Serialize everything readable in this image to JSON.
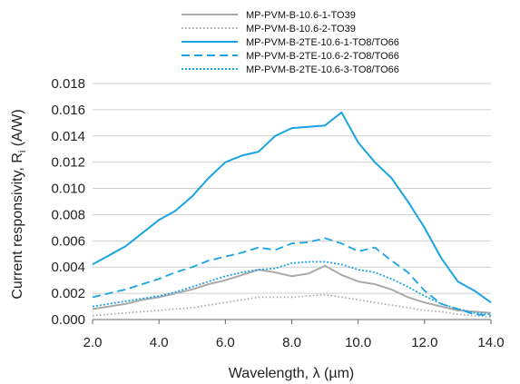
{
  "chart_data": {
    "type": "line",
    "xlabel": "Wavelength, λ (µm)",
    "ylabel_main": "Current responsivity, R",
    "ylabel_sub": "i",
    "ylabel_unit": " (A/W)",
    "xlim": [
      2.0,
      14.0
    ],
    "ylim": [
      0.0,
      0.018
    ],
    "x_ticks": [
      "2.0",
      "4.0",
      "6.0",
      "8.0",
      "10.0",
      "12.0",
      "14.0"
    ],
    "y_ticks": [
      "0.000",
      "0.002",
      "0.004",
      "0.006",
      "0.008",
      "0.010",
      "0.012",
      "0.014",
      "0.016",
      "0.018"
    ],
    "grid": "horizontal",
    "legend_position": "top",
    "series": [
      {
        "name": "MP-PVM-B-10.6-1-TO39",
        "color": "#aaaaaa",
        "style": "solid",
        "x": [
          2.0,
          2.5,
          3.0,
          3.5,
          4.0,
          4.5,
          5.0,
          5.5,
          6.0,
          6.5,
          7.0,
          7.5,
          8.0,
          8.5,
          9.0,
          9.5,
          10.0,
          10.5,
          11.0,
          11.5,
          12.0,
          12.5,
          13.0,
          13.5,
          14.0
        ],
        "y": [
          0.0008,
          0.001,
          0.0012,
          0.0015,
          0.0017,
          0.002,
          0.0023,
          0.0027,
          0.003,
          0.0034,
          0.0038,
          0.0036,
          0.0033,
          0.0035,
          0.0041,
          0.0034,
          0.0029,
          0.0027,
          0.0023,
          0.0017,
          0.0013,
          0.001,
          0.0007,
          0.0006,
          0.0005
        ]
      },
      {
        "name": "MP-PVM-B-10.6-2-TO39",
        "color": "#aaaaaa",
        "style": "dotted",
        "x": [
          2.0,
          2.5,
          3.0,
          3.5,
          4.0,
          4.5,
          5.0,
          5.5,
          6.0,
          6.5,
          7.0,
          7.5,
          8.0,
          8.5,
          9.0,
          9.5,
          10.0,
          10.5,
          11.0,
          11.5,
          12.0,
          12.5,
          13.0,
          13.5,
          14.0
        ],
        "y": [
          0.0003,
          0.0004,
          0.0005,
          0.0006,
          0.0007,
          0.0008,
          0.0009,
          0.0011,
          0.0013,
          0.0015,
          0.0017,
          0.0017,
          0.0017,
          0.0018,
          0.0019,
          0.0017,
          0.0015,
          0.0013,
          0.0011,
          0.0009,
          0.0007,
          0.0006,
          0.0004,
          0.0003,
          0.0002
        ]
      },
      {
        "name": "MP-PVM-B-2TE-10.6-1-TO8/TO66",
        "color": "#1aa3e3",
        "style": "solid",
        "x": [
          2.0,
          2.5,
          3.0,
          3.5,
          4.0,
          4.5,
          5.0,
          5.5,
          6.0,
          6.5,
          7.0,
          7.5,
          8.0,
          8.5,
          9.0,
          9.5,
          10.0,
          10.5,
          11.0,
          11.5,
          12.0,
          12.5,
          13.0,
          13.5,
          14.0
        ],
        "y": [
          0.0042,
          0.0049,
          0.0056,
          0.0066,
          0.0076,
          0.0083,
          0.0094,
          0.0108,
          0.012,
          0.0125,
          0.0128,
          0.014,
          0.0146,
          0.0147,
          0.0148,
          0.0158,
          0.0135,
          0.012,
          0.0108,
          0.009,
          0.007,
          0.0047,
          0.0029,
          0.0022,
          0.0013
        ]
      },
      {
        "name": "MP-PVM-B-2TE-10.6-2-TO8/TO66",
        "color": "#1aa3e3",
        "style": "dashed",
        "x": [
          2.0,
          2.5,
          3.0,
          3.5,
          4.0,
          4.5,
          5.0,
          5.5,
          6.0,
          6.5,
          7.0,
          7.5,
          8.0,
          8.5,
          9.0,
          9.5,
          10.0,
          10.5,
          11.0,
          11.5,
          12.0,
          12.5,
          13.0,
          13.5,
          14.0
        ],
        "y": [
          0.0017,
          0.002,
          0.0023,
          0.0027,
          0.0031,
          0.0036,
          0.004,
          0.0045,
          0.0048,
          0.0051,
          0.0055,
          0.0053,
          0.0058,
          0.0059,
          0.0062,
          0.0058,
          0.0052,
          0.0055,
          0.0045,
          0.0036,
          0.0022,
          0.0012,
          0.0008,
          0.0004,
          0.0003
        ]
      },
      {
        "name": "MP-PVM-B-2TE-10.6-3-TO8/TO66",
        "color": "#1aa3e3",
        "style": "dotted",
        "x": [
          2.0,
          2.5,
          3.0,
          3.5,
          4.0,
          4.5,
          5.0,
          5.5,
          6.0,
          6.5,
          7.0,
          7.5,
          8.0,
          8.5,
          9.0,
          9.5,
          10.0,
          10.5,
          11.0,
          11.5,
          12.0,
          12.5,
          13.0,
          13.5,
          14.0
        ],
        "y": [
          0.001,
          0.0012,
          0.0014,
          0.0016,
          0.0018,
          0.0021,
          0.0025,
          0.0029,
          0.0033,
          0.0036,
          0.0038,
          0.0039,
          0.0043,
          0.0044,
          0.0044,
          0.0042,
          0.0038,
          0.0036,
          0.0031,
          0.0025,
          0.0018,
          0.0012,
          0.0008,
          0.0005,
          0.0004
        ]
      }
    ]
  }
}
